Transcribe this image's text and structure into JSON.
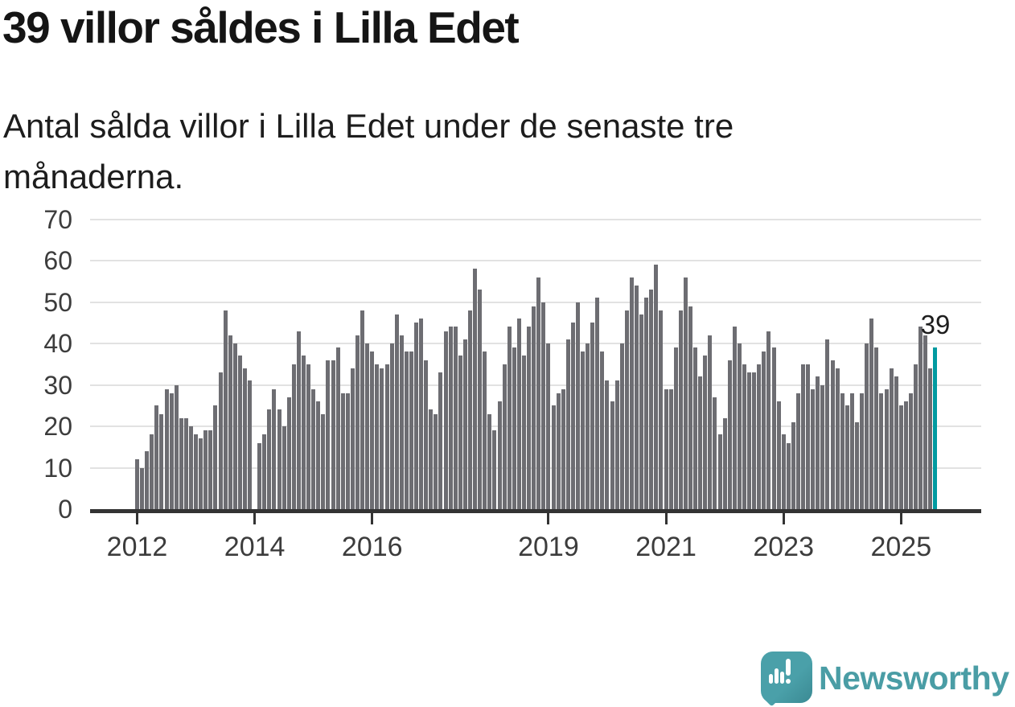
{
  "header": {
    "title": "39 villor såldes i Lilla Edet",
    "subtitle": "Antal sålda villor i Lilla Edet under de senaste tre månaderna."
  },
  "annotation": {
    "last_value_label": "39"
  },
  "logo": {
    "wordmark": "Newsworthy",
    "icon": "speech-bubble-bar-chart-icon",
    "color": "#4a9da5"
  },
  "colors": {
    "bar": "#6d6d72",
    "highlight": "#009aa0",
    "axis": "#333333",
    "gridline": "#e2e2e2",
    "text": "#1d1d1d"
  },
  "chart_data": {
    "type": "bar",
    "title": "39 villor såldes i Lilla Edet",
    "subtitle": "Antal sålda villor i Lilla Edet under de senaste tre månaderna.",
    "xlabel": "",
    "ylabel": "",
    "x_start": "2012-01",
    "x_end": "2025-08",
    "x_frequency": "monthly",
    "ylim": [
      0,
      70
    ],
    "grid": "horizontal",
    "yticks": [
      0,
      10,
      20,
      30,
      40,
      50,
      60,
      70
    ],
    "xtick_labels": [
      "2012",
      "2014",
      "2016",
      "2019",
      "2021",
      "2023",
      "2025"
    ],
    "xtick_month_index": [
      0,
      24,
      48,
      84,
      108,
      132,
      156
    ],
    "highlight_last_bar": true,
    "last_value_label": "39",
    "values": [
      12,
      10,
      14,
      18,
      25,
      23,
      29,
      28,
      30,
      22,
      22,
      20,
      18,
      17,
      19,
      19,
      25,
      33,
      48,
      42,
      40,
      37,
      34,
      31,
      null,
      16,
      18,
      24,
      29,
      24,
      20,
      27,
      35,
      43,
      37,
      35,
      29,
      26,
      23,
      36,
      36,
      39,
      28,
      28,
      34,
      42,
      48,
      40,
      38,
      35,
      34,
      35,
      40,
      47,
      42,
      38,
      38,
      45,
      46,
      36,
      24,
      23,
      33,
      43,
      44,
      44,
      37,
      41,
      48,
      58,
      53,
      38,
      23,
      19,
      26,
      35,
      44,
      39,
      46,
      37,
      44,
      49,
      56,
      50,
      40,
      25,
      28,
      29,
      41,
      45,
      50,
      38,
      40,
      45,
      51,
      38,
      31,
      26,
      31,
      40,
      48,
      56,
      54,
      47,
      51,
      53,
      59,
      48,
      29,
      29,
      39,
      48,
      56,
      49,
      39,
      32,
      37,
      42,
      27,
      18,
      22,
      36,
      44,
      40,
      35,
      33,
      33,
      35,
      38,
      43,
      39,
      26,
      18,
      16,
      21,
      28,
      35,
      35,
      29,
      32,
      30,
      41,
      36,
      34,
      28,
      25,
      28,
      21,
      28,
      40,
      46,
      39,
      28,
      29,
      34,
      32,
      25,
      26,
      28,
      35,
      44,
      42,
      34,
      39
    ]
  }
}
